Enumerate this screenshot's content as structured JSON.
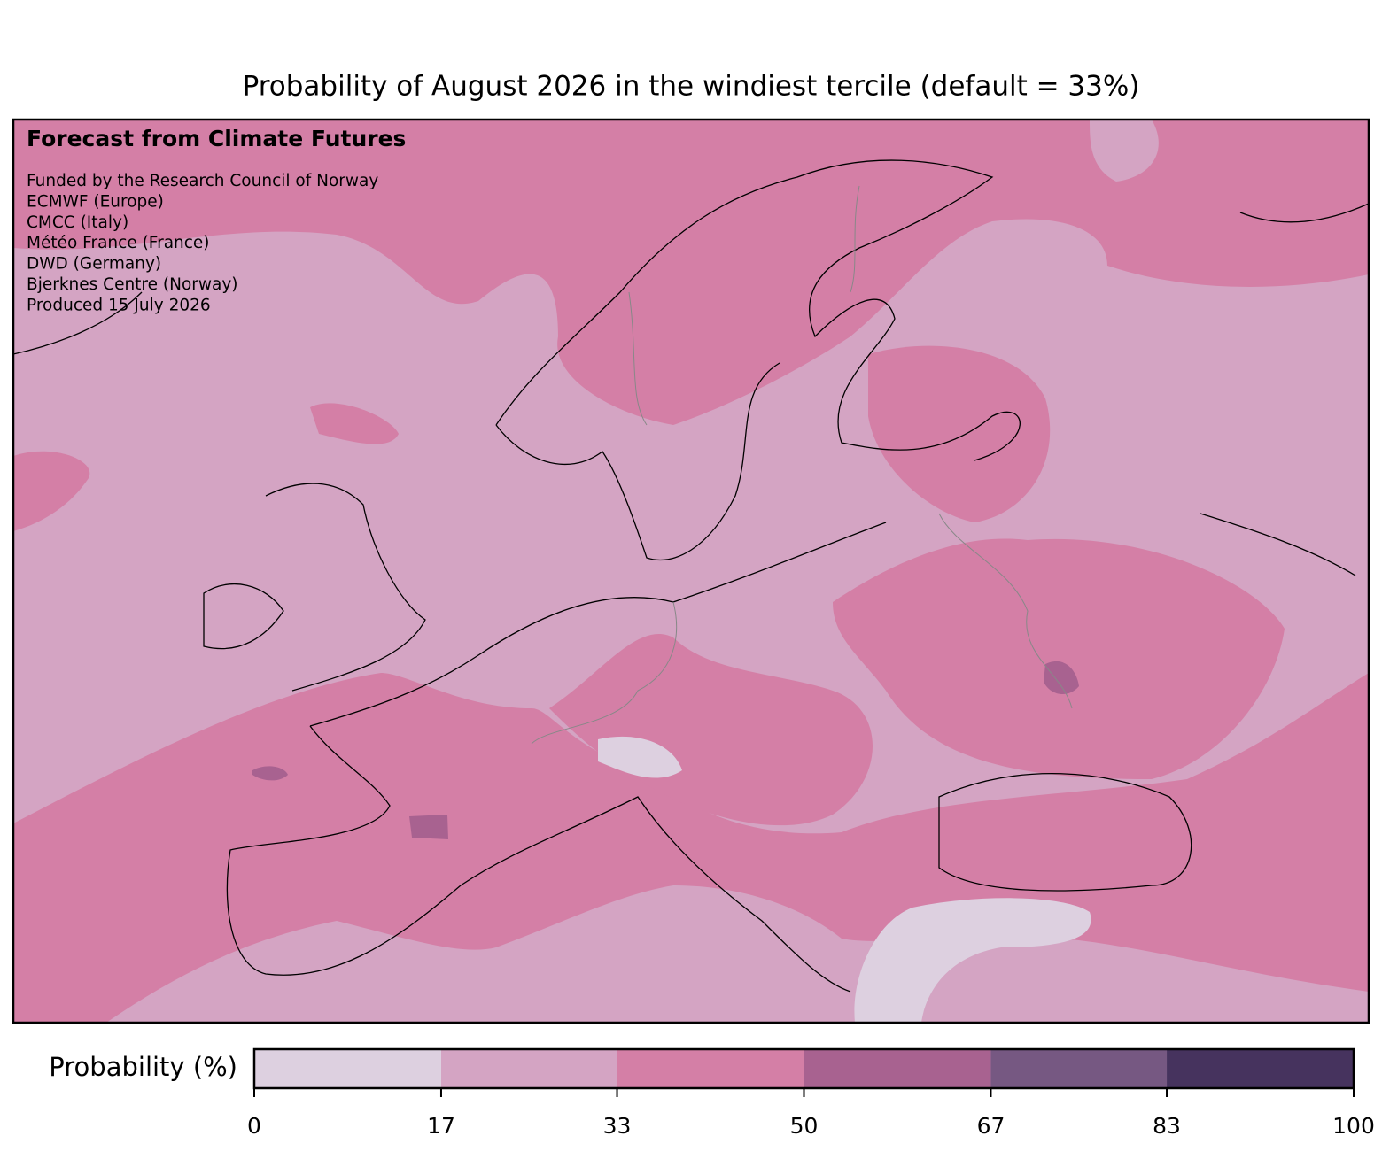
{
  "title": "Probability of August 2026 in the windiest tercile (default = 33%)",
  "annotation": {
    "heading": "Forecast from Climate Futures",
    "lines": [
      "Funded by the Research Council of Norway",
      "ECMWF (Europe)",
      "CMCC (Italy)",
      "Météo France (France)",
      "DWD (Germany)",
      "Bjerknes Centre (Norway)",
      "Produced 15 July 2026"
    ]
  },
  "colorbar": {
    "label": "Probability (%)",
    "ticks": [
      0,
      17,
      33,
      50,
      67,
      83,
      100
    ],
    "colors": [
      "#ddd0e0",
      "#d4a4c3",
      "#d47fa6",
      "#a86290",
      "#765882",
      "#46335e"
    ]
  }
}
